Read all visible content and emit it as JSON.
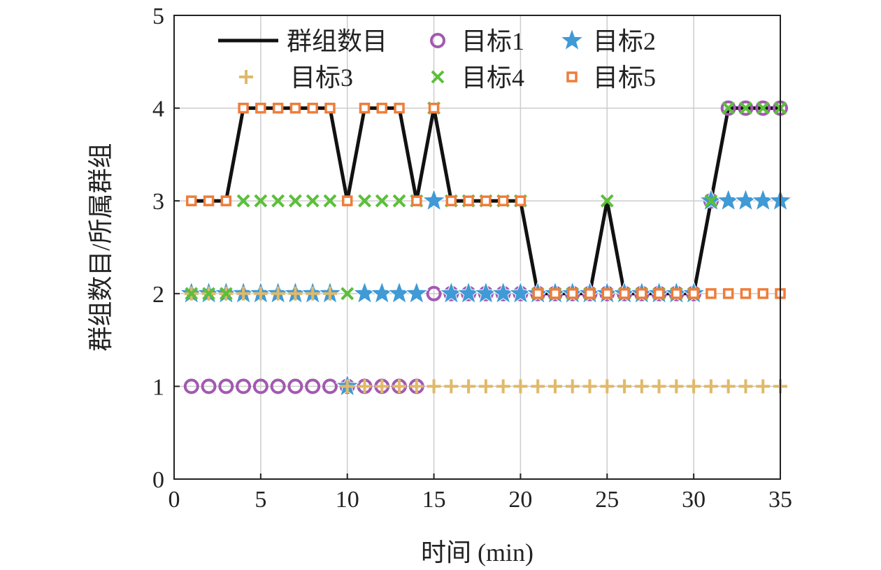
{
  "chart_data": {
    "type": "line",
    "xlabel": "时间 (min)",
    "ylabel": "群组数目/所属群组",
    "xlim": [
      0,
      35
    ],
    "ylim": [
      0,
      5
    ],
    "xticks": [
      "0",
      "5",
      "10",
      "15",
      "20",
      "25",
      "30",
      "35"
    ],
    "yticks": [
      "0",
      "1",
      "2",
      "3",
      "4",
      "5"
    ],
    "grid": true,
    "legend_position": "top",
    "x": [
      1,
      2,
      3,
      4,
      5,
      6,
      7,
      8,
      9,
      10,
      11,
      12,
      13,
      14,
      15,
      16,
      17,
      18,
      19,
      20,
      21,
      22,
      23,
      24,
      25,
      26,
      27,
      28,
      29,
      30,
      31,
      32,
      33,
      34,
      35
    ],
    "series": [
      {
        "name": "群组数目",
        "marker": "line",
        "color": "#111111",
        "values": [
          3,
          3,
          3,
          4,
          4,
          4,
          4,
          4,
          4,
          3,
          4,
          4,
          4,
          3,
          4,
          3,
          3,
          3,
          3,
          3,
          2,
          2,
          2,
          2,
          3,
          2,
          2,
          2,
          2,
          2,
          3,
          4,
          4,
          4,
          4
        ]
      },
      {
        "name": "目标1",
        "marker": "circle",
        "color": "#a259b0",
        "values": [
          1,
          1,
          1,
          1,
          1,
          1,
          1,
          1,
          1,
          1,
          1,
          1,
          1,
          1,
          2,
          2,
          2,
          2,
          2,
          2,
          2,
          2,
          2,
          2,
          2,
          2,
          2,
          2,
          2,
          2,
          3,
          4,
          4,
          4,
          4
        ]
      },
      {
        "name": "目标2",
        "marker": "star",
        "color": "#3f9ad6",
        "values": [
          2,
          2,
          2,
          2,
          2,
          2,
          2,
          2,
          2,
          1,
          2,
          2,
          2,
          2,
          3,
          2,
          2,
          2,
          2,
          2,
          2,
          2,
          2,
          2,
          2,
          2,
          2,
          2,
          2,
          2,
          3,
          3,
          3,
          3,
          3
        ]
      },
      {
        "name": "目标3",
        "marker": "plus",
        "color": "#e0b96a",
        "values": [
          2,
          2,
          2,
          2,
          2,
          2,
          2,
          2,
          2,
          1,
          1,
          1,
          1,
          1,
          1,
          1,
          1,
          1,
          1,
          1,
          1,
          1,
          1,
          1,
          1,
          1,
          1,
          1,
          1,
          1,
          1,
          1,
          1,
          1,
          1
        ]
      },
      {
        "name": "目标4",
        "marker": "x",
        "color": "#5bbf3a",
        "values": [
          2,
          2,
          2,
          3,
          3,
          3,
          3,
          3,
          3,
          2,
          3,
          3,
          3,
          3,
          4,
          3,
          3,
          3,
          3,
          3,
          2,
          2,
          2,
          2,
          3,
          2,
          2,
          2,
          2,
          2,
          3,
          4,
          4,
          4,
          4
        ]
      },
      {
        "name": "目标5",
        "marker": "square",
        "color": "#ef7d3a",
        "values": [
          3,
          3,
          3,
          4,
          4,
          4,
          4,
          4,
          4,
          3,
          4,
          4,
          4,
          3,
          4,
          3,
          3,
          3,
          3,
          3,
          2,
          2,
          2,
          2,
          2,
          2,
          2,
          2,
          2,
          2,
          2,
          2,
          2,
          2,
          2
        ]
      }
    ]
  }
}
